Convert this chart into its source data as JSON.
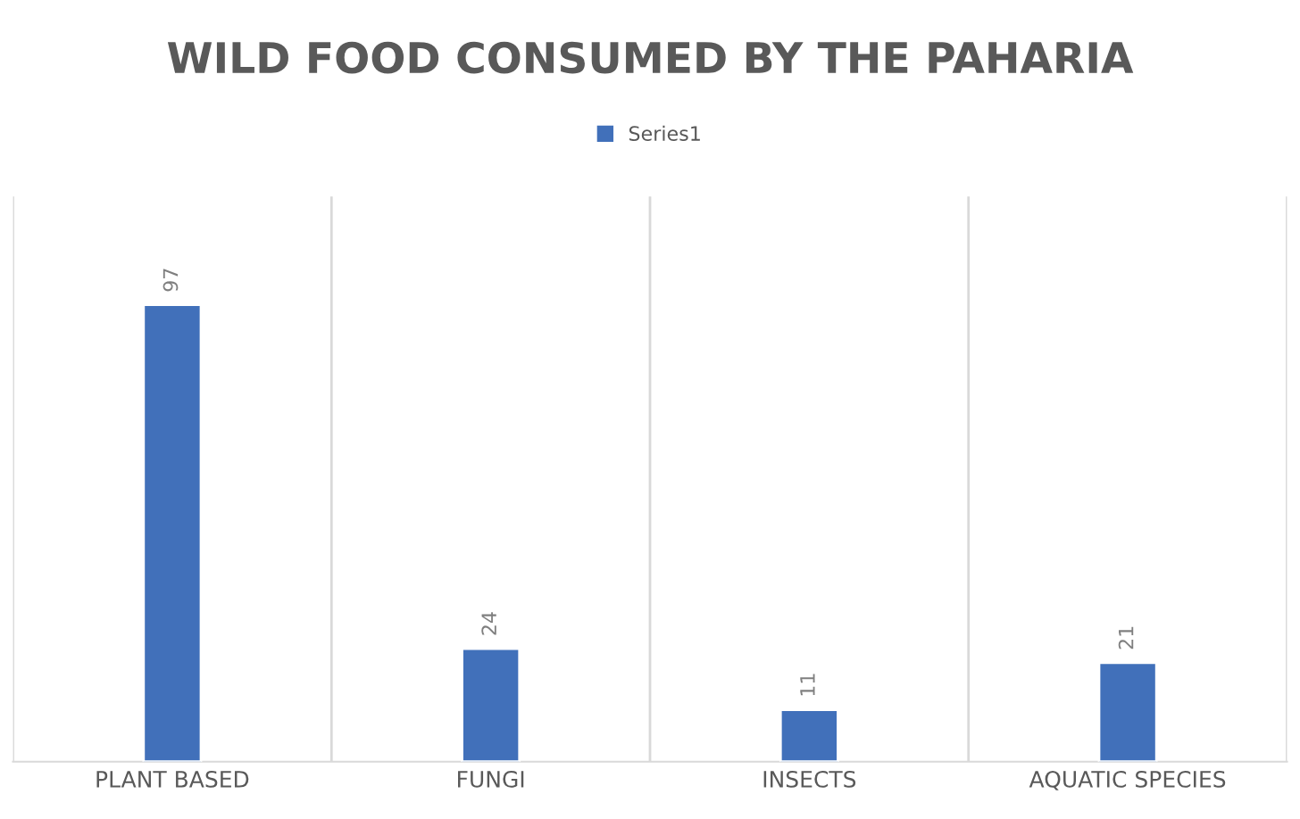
{
  "chart_data": {
    "type": "bar",
    "title": "WILD FOOD CONSUMED BY THE PAHARIA",
    "categories": [
      "PLANT BASED",
      "FUNGI",
      "INSECTS",
      "AQUATIC SPECIES"
    ],
    "series": [
      {
        "name": "Series1",
        "color": "#4170ba",
        "values": [
          97,
          24,
          11,
          21
        ]
      }
    ],
    "data_labels": true,
    "legend": "top",
    "grid": "x",
    "tick_labels": "x",
    "ylim": [
      0,
      120
    ]
  }
}
